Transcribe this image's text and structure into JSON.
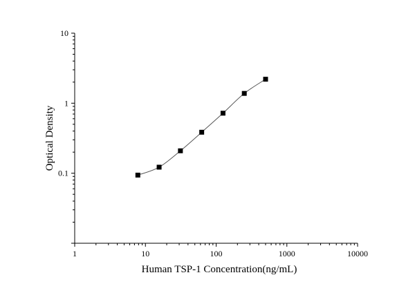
{
  "chart_data": {
    "type": "scatter",
    "title": "",
    "xlabel": "Human TSP-1 Concentration(ng/mL)",
    "ylabel": "Optical Density",
    "x_scale": "log",
    "y_scale": "log",
    "xlim": [
      1,
      10000
    ],
    "ylim": [
      0.01,
      10
    ],
    "x_ticks": [
      {
        "value": 1,
        "label": "1"
      },
      {
        "value": 10,
        "label": "10"
      },
      {
        "value": 100,
        "label": "100"
      },
      {
        "value": 1000,
        "label": "1000"
      },
      {
        "value": 10000,
        "label": "10000"
      }
    ],
    "y_ticks": [
      {
        "value": 0.1,
        "label": "0.1"
      },
      {
        "value": 1,
        "label": "1"
      },
      {
        "value": 10,
        "label": "10"
      }
    ],
    "grid": false,
    "legend": "none",
    "marker": "square",
    "fit_line": true,
    "series": [
      {
        "x": [
          7.8125,
          15.625,
          31.25,
          62.5,
          125,
          250,
          500
        ],
        "y": [
          0.094,
          0.122,
          0.209,
          0.385,
          0.72,
          1.38,
          2.2
        ]
      }
    ],
    "colors": {
      "marker": "#000000",
      "line": "#555555",
      "axis": "#000000"
    }
  }
}
